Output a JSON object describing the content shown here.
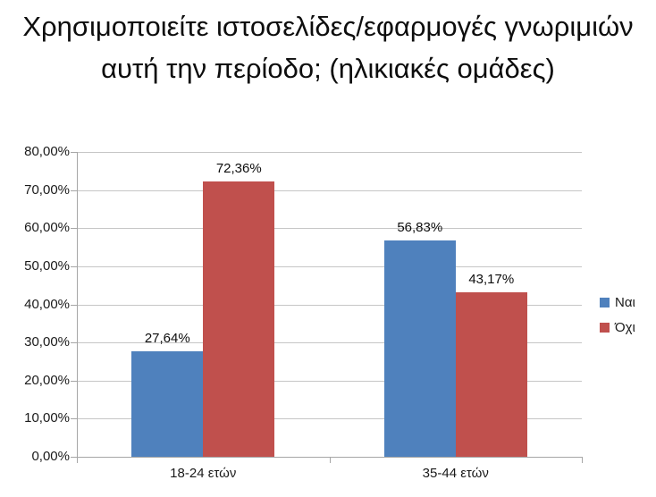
{
  "chart_data": {
    "type": "bar",
    "title": "Χρησιμοποιείτε ιστοσελίδες/εφαρμογές γνωριμιών αυτή την περίοδο; (ηλικιακές ομάδες)",
    "categories": [
      "18-24 ετών",
      "35-44 ετών"
    ],
    "series": [
      {
        "name": "Ναι",
        "color": "#4F81BD",
        "values": [
          27.64,
          56.83
        ],
        "labels": [
          "27,64%",
          "56,83%"
        ]
      },
      {
        "name": "Όχι",
        "color": "#C0504D",
        "values": [
          72.36,
          43.17
        ],
        "labels": [
          "72,36%",
          "43,17%"
        ]
      }
    ],
    "ylabel": "",
    "xlabel": "",
    "ylim": [
      0,
      80
    ],
    "ytick_step": 10,
    "ytick_labels": [
      "0,00%",
      "10,00%",
      "20,00%",
      "30,00%",
      "40,00%",
      "50,00%",
      "60,00%",
      "70,00%",
      "80,00%"
    ],
    "grid": true,
    "legend_position": "right",
    "grid_color": "#C6C6C6",
    "axis_color": "#A6A6A6"
  }
}
